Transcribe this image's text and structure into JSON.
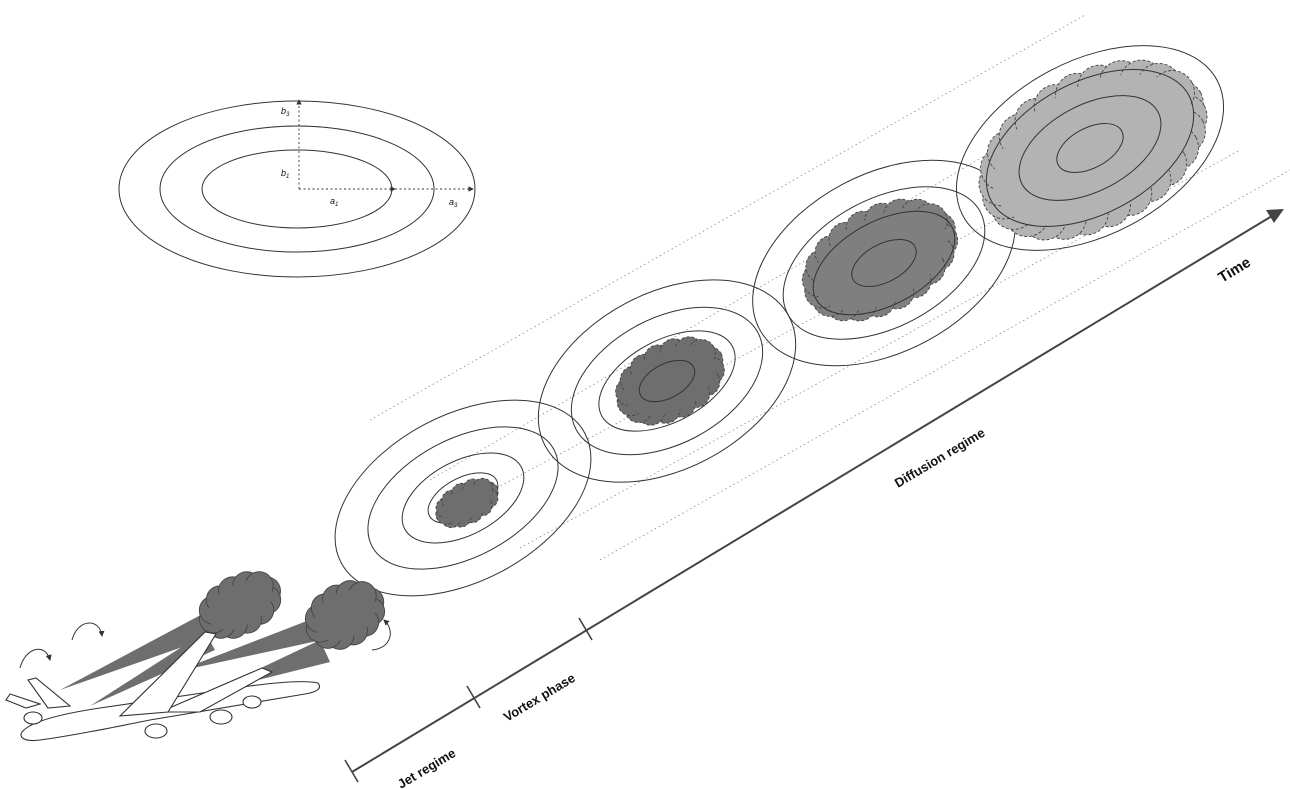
{
  "axis": {
    "time_label": "Time",
    "phases": [
      {
        "key": "jet",
        "label": "Jet regime"
      },
      {
        "key": "vortex",
        "label": "Vortex phase"
      },
      {
        "key": "diffusion",
        "label": "Diffusion regime"
      }
    ]
  },
  "legend_ellipse": {
    "labels": {
      "b3": "b",
      "b3_sub": "3",
      "b1": "b",
      "b1_sub": "1",
      "a1": "a",
      "a1_sub": "1",
      "a3": "a",
      "a3_sub": "3"
    }
  },
  "colors": {
    "plume_dark": "#6e6e6e",
    "plume_medium": "#7f7f7f",
    "plume_light": "#b3b3b3",
    "line": "#333333"
  },
  "icons": [
    "airplane-icon",
    "vortex-swirl-icon"
  ]
}
